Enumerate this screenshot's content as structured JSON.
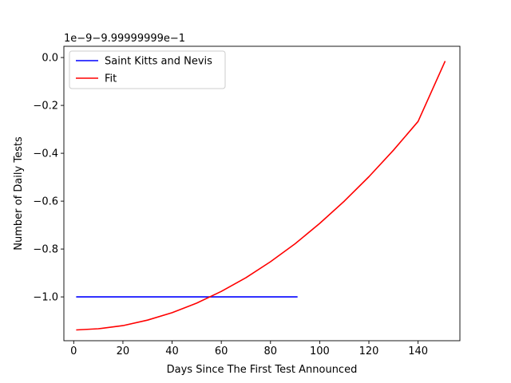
{
  "chart_data": {
    "type": "line",
    "title": "",
    "xlabel": "Days Since The First Test Announced",
    "ylabel": "Number of Daily Tests",
    "offset_label": "1e−9−9.99999999e−1",
    "xlim": [
      -4,
      157
    ],
    "ylim": [
      -1.183,
      0.047
    ],
    "x_ticks": [
      0,
      20,
      40,
      60,
      80,
      100,
      120,
      140
    ],
    "x_tick_labels": [
      "0",
      "20",
      "40",
      "60",
      "80",
      "100",
      "120",
      "140"
    ],
    "y_ticks": [
      0.0,
      -0.2,
      -0.4,
      -0.6,
      -0.8,
      -1.0
    ],
    "y_tick_labels": [
      "0.0",
      "−0.2",
      "−0.4",
      "−0.6",
      "−0.8",
      "−1.0"
    ],
    "grid": false,
    "legend_position": "upper-left",
    "series": [
      {
        "name": "Saint Kitts and Nevis",
        "color": "#0000ff",
        "x": [
          1,
          91
        ],
        "y": [
          -1.0,
          -1.0
        ]
      },
      {
        "name": "Fit",
        "color": "#ff0000",
        "x": [
          1,
          10,
          20,
          30,
          40,
          50,
          60,
          70,
          80,
          90,
          100,
          110,
          120,
          130,
          140,
          151
        ],
        "y": [
          -1.138,
          -1.133,
          -1.12,
          -1.097,
          -1.066,
          -1.026,
          -0.977,
          -0.92,
          -0.853,
          -0.778,
          -0.693,
          -0.6,
          -0.498,
          -0.387,
          -0.267,
          -0.015
        ]
      }
    ]
  }
}
